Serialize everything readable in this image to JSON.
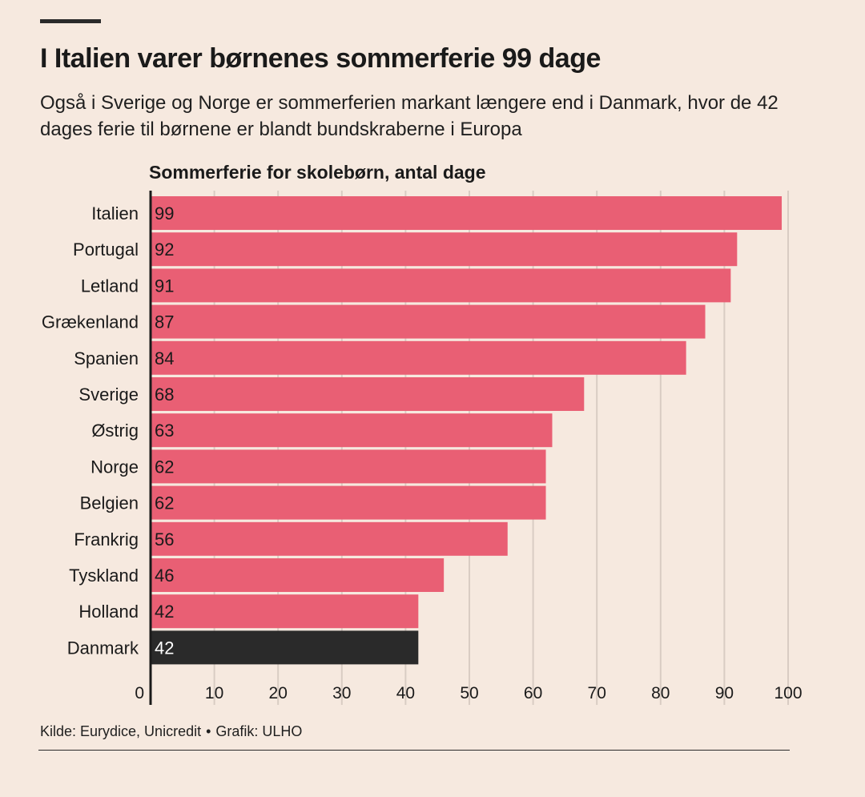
{
  "header": {
    "title": "I Italien varer børnenes sommerferie 99 dage",
    "subtitle": "Også i Sverige og Norge er sommerferien markant længere end i Danmark, hvor de 42 dages ferie til børnene er blandt bundskraberne i Europa"
  },
  "chart_data": {
    "type": "bar",
    "orientation": "horizontal",
    "title": "Sommerferie for skolebørn, antal dage",
    "categories": [
      "Italien",
      "Portugal",
      "Letland",
      "Grækenland",
      "Spanien",
      "Sverige",
      "Østrig",
      "Norge",
      "Belgien",
      "Frankrig",
      "Tyskland",
      "Holland",
      "Danmark"
    ],
    "values": [
      99,
      92,
      91,
      87,
      84,
      68,
      63,
      62,
      62,
      56,
      46,
      42,
      42
    ],
    "highlight_category": "Danmark",
    "colors": {
      "bar": "#e95f74",
      "highlight": "#2a2a2a",
      "value_text": "#1a1a1a",
      "highlight_value_text": "#ffffff",
      "grid": "#d9ccc3"
    },
    "xlim": [
      0,
      100
    ],
    "xticks": [
      0,
      10,
      20,
      30,
      40,
      50,
      60,
      70,
      80,
      90,
      100
    ],
    "grid": true
  },
  "footer": {
    "source": "Kilde: Eurydice, Unicredit",
    "separator": "•",
    "credit": "Grafik: ULHO"
  }
}
